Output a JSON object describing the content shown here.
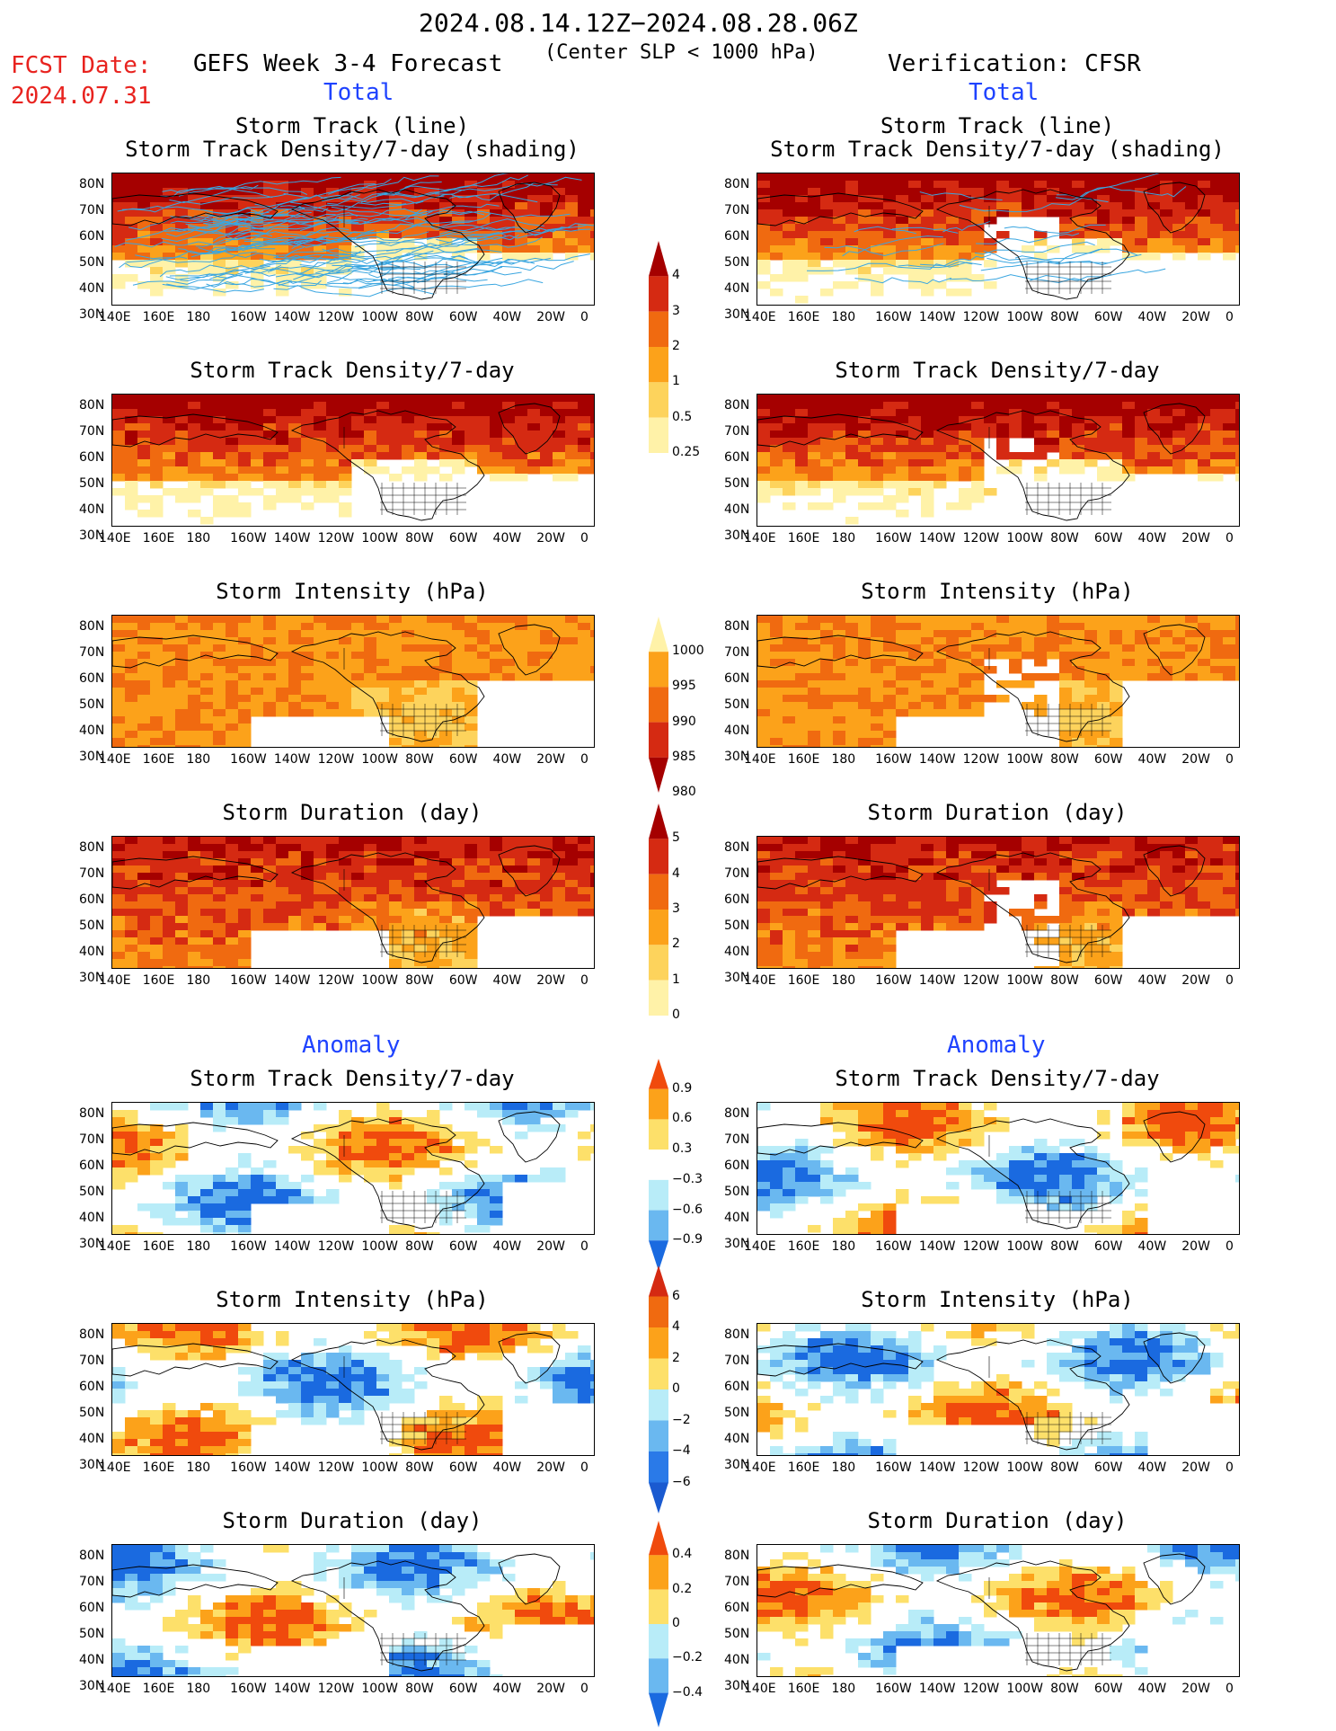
{
  "header": {
    "date_range": "2024.08.14.12Z−2024.08.28.06Z",
    "fcst_label": "FCST Date:",
    "fcst_date": "2024.07.31",
    "forecast_title": "GEFS Week 3-4 Forecast",
    "criterion": "(Center SLP < 1000 hPa)",
    "verification": "Verification: CFSR"
  },
  "sections": {
    "total": "Total",
    "anomaly": "Anomaly"
  },
  "titles": {
    "track_line": "Storm Track (line)",
    "track_shading": "Storm Track Density/7-day (shading)",
    "density": "Storm Track Density/7-day",
    "intensity": "Storm Intensity (hPa)",
    "duration": "Storm Duration (day)"
  },
  "axes": {
    "lat": [
      "80N",
      "70N",
      "60N",
      "50N",
      "40N",
      "30N"
    ],
    "lon": [
      "140E",
      "160E",
      "180",
      "160W",
      "140W",
      "120W",
      "100W",
      "80W",
      "60W",
      "40W",
      "20W",
      "0"
    ]
  },
  "colorbars": {
    "density": {
      "ticks": [
        "4",
        "3",
        "2",
        "1",
        "0.5",
        "0.25"
      ],
      "colors": [
        "#a50000",
        "#d52a12",
        "#f06a10",
        "#fca21a",
        "#fdd35c",
        "#fff2a8"
      ]
    },
    "intensity": {
      "ticks": [
        "1000",
        "995",
        "990",
        "985",
        "980"
      ],
      "colors": [
        "#fff2a8",
        "#fca21a",
        "#f06a10",
        "#d52a12",
        "#a50000"
      ]
    },
    "duration": {
      "ticks": [
        "5",
        "4",
        "3",
        "2",
        "1",
        "0"
      ],
      "colors": [
        "#a50000",
        "#d52a12",
        "#f06a10",
        "#fca21a",
        "#fdd35c",
        "#fff2a8"
      ]
    },
    "anom_density": {
      "ticks": [
        "0.9",
        "0.6",
        "0.3",
        "−0.3",
        "−0.6",
        "−0.9"
      ],
      "colors": [
        "#f04a0d",
        "#fca21a",
        "#fde06a",
        "#ffffff",
        "#b8ecf8",
        "#6ab8f0",
        "#1a6ae0"
      ]
    },
    "anom_intensity": {
      "ticks": [
        "6",
        "4",
        "2",
        "0",
        "−2",
        "−4",
        "−6"
      ],
      "colors": [
        "#d52a12",
        "#f06a10",
        "#fca21a",
        "#fde06a",
        "#b8ecf8",
        "#6ab8f0",
        "#2a7ae8",
        "#1a5ad0"
      ]
    },
    "anom_duration": {
      "ticks": [
        "0.4",
        "0.2",
        "0",
        "−0.2",
        "−0.4"
      ],
      "colors": [
        "#f04a0d",
        "#fca21a",
        "#fde06a",
        "#b8ecf8",
        "#6ab8f0",
        "#1a6ae0"
      ]
    }
  },
  "palette": {
    "seq": [
      "#fff2a8",
      "#fdd35c",
      "#fca21a",
      "#f06a10",
      "#d52a12",
      "#a50000"
    ],
    "anom_pos": [
      "#fde06a",
      "#fca21a",
      "#f04a0d"
    ],
    "anom_neg": [
      "#b8ecf8",
      "#6ab8f0",
      "#1a6ae0"
    ],
    "track_line": "#3aa6e0"
  }
}
